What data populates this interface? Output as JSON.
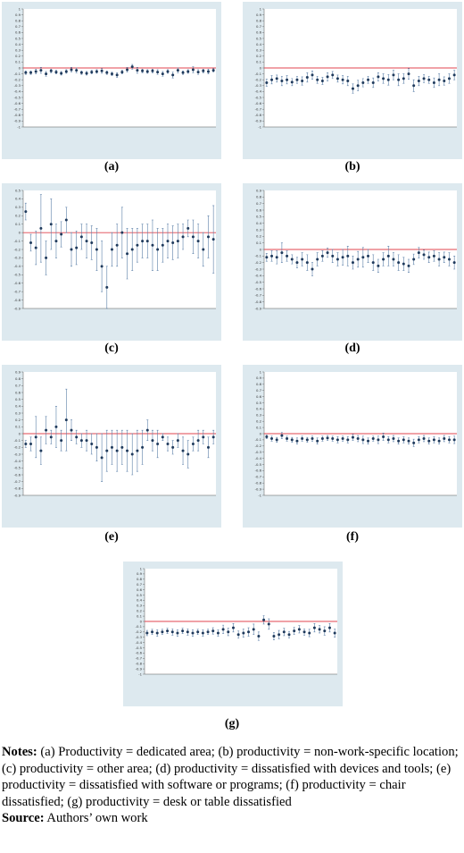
{
  "chart_data": [
    {
      "type": "errorbar",
      "label": "(a)",
      "point_color": "#1f3a5c",
      "error_color": "#5b7fa8",
      "reference_line": 0,
      "reference_color": "#e0454f",
      "ylim": [
        -1,
        1
      ],
      "yticks": [
        -1,
        -0.9,
        -0.8,
        -0.7,
        -0.6,
        -0.5,
        -0.4,
        -0.3,
        -0.2,
        -0.1,
        0,
        0.1,
        0.2,
        0.3,
        0.4,
        0.5,
        0.6,
        0.7,
        0.8,
        0.9,
        1
      ],
      "categories": [
        null,
        null,
        null,
        null,
        null,
        null,
        null,
        null,
        null,
        null,
        null,
        null,
        null,
        null,
        null,
        null,
        null,
        null,
        null,
        null,
        null,
        null,
        null,
        null,
        null,
        null,
        null,
        null,
        null,
        null,
        null,
        null,
        null,
        null,
        null,
        null,
        null,
        null
      ],
      "values": [
        -0.08,
        -0.08,
        -0.06,
        -0.04,
        -0.1,
        -0.05,
        -0.07,
        -0.09,
        -0.06,
        -0.03,
        -0.04,
        -0.08,
        -0.09,
        -0.07,
        -0.06,
        -0.05,
        -0.08,
        -0.1,
        -0.12,
        -0.07,
        -0.03,
        0.02,
        -0.04,
        -0.05,
        -0.06,
        -0.05,
        -0.07,
        -0.1,
        -0.06,
        -0.12,
        -0.04,
        -0.08,
        -0.06,
        -0.03,
        -0.07,
        -0.05,
        -0.06,
        -0.04
      ],
      "errors": [
        0.03,
        0.03,
        0.04,
        0.05,
        0.04,
        0.03,
        0.03,
        0.03,
        0.03,
        0.04,
        0.04,
        0.03,
        0.03,
        0.03,
        0.03,
        0.04,
        0.03,
        0.03,
        0.04,
        0.03,
        0.04,
        0.04,
        0.05,
        0.03,
        0.03,
        0.03,
        0.04,
        0.04,
        0.03,
        0.05,
        0.04,
        0.03,
        0.03,
        0.05,
        0.04,
        0.03,
        0.04,
        0.03
      ]
    },
    {
      "type": "errorbar",
      "label": "(b)",
      "point_color": "#1f3a5c",
      "error_color": "#5b7fa8",
      "reference_line": 0,
      "reference_color": "#e0454f",
      "ylim": [
        -1,
        1
      ],
      "yticks": [
        -1,
        -0.9,
        -0.8,
        -0.7,
        -0.6,
        -0.5,
        -0.4,
        -0.3,
        -0.2,
        -0.1,
        0,
        0.1,
        0.2,
        0.3,
        0.4,
        0.5,
        0.6,
        0.7,
        0.8,
        0.9,
        1
      ],
      "categories": [
        null,
        null,
        null,
        null,
        null,
        null,
        null,
        null,
        null,
        null,
        null,
        null,
        null,
        null,
        null,
        null,
        null,
        null,
        null,
        null,
        null,
        null,
        null,
        null,
        null,
        null,
        null,
        null,
        null,
        null,
        null,
        null,
        null,
        null,
        null,
        null,
        null,
        null
      ],
      "values": [
        -0.25,
        -0.2,
        -0.18,
        -0.22,
        -0.2,
        -0.24,
        -0.2,
        -0.22,
        -0.16,
        -0.12,
        -0.2,
        -0.22,
        -0.15,
        -0.12,
        -0.18,
        -0.2,
        -0.22,
        -0.35,
        -0.3,
        -0.25,
        -0.2,
        -0.25,
        -0.15,
        -0.18,
        -0.2,
        -0.12,
        -0.2,
        -0.18,
        -0.1,
        -0.3,
        -0.22,
        -0.18,
        -0.2,
        -0.25,
        -0.2,
        -0.22,
        -0.18,
        -0.12
      ],
      "errors": [
        0.06,
        0.07,
        0.06,
        0.08,
        0.07,
        0.06,
        0.06,
        0.07,
        0.08,
        0.07,
        0.06,
        0.06,
        0.07,
        0.06,
        0.06,
        0.07,
        0.08,
        0.08,
        0.09,
        0.07,
        0.06,
        0.08,
        0.07,
        0.08,
        0.09,
        0.08,
        0.1,
        0.08,
        0.09,
        0.1,
        0.08,
        0.07,
        0.06,
        0.08,
        0.1,
        0.07,
        0.08,
        0.08
      ]
    },
    {
      "type": "errorbar",
      "label": "(c)",
      "point_color": "#1f3a5c",
      "error_color": "#5b7fa8",
      "reference_line": 0,
      "reference_color": "#e0454f",
      "ylim": [
        -0.9,
        0.5
      ],
      "yticks": [
        -0.9,
        -0.8,
        -0.7,
        -0.6,
        -0.5,
        -0.4,
        -0.3,
        -0.2,
        -0.1,
        0,
        0.1,
        0.2,
        0.3,
        0.4,
        0.5
      ],
      "categories": [
        null,
        null,
        null,
        null,
        null,
        null,
        null,
        null,
        null,
        null,
        null,
        null,
        null,
        null,
        null,
        null,
        null,
        null,
        null,
        null,
        null,
        null,
        null,
        null,
        null,
        null,
        null,
        null,
        null,
        null,
        null,
        null,
        null,
        null,
        null,
        null,
        null,
        null
      ],
      "values": [
        0.25,
        -0.12,
        -0.18,
        0.05,
        -0.3,
        0.1,
        -0.1,
        -0.02,
        0.15,
        -0.2,
        -0.18,
        -0.05,
        -0.1,
        -0.12,
        -0.2,
        -0.4,
        -0.65,
        -0.2,
        -0.15,
        0,
        -0.25,
        -0.2,
        -0.15,
        -0.1,
        -0.1,
        -0.15,
        -0.2,
        -0.15,
        -0.1,
        -0.12,
        -0.1,
        -0.05,
        0.05,
        -0.05,
        -0.1,
        -0.2,
        -0.05,
        -0.08
      ],
      "errors": [
        0.1,
        0.1,
        0.2,
        0.4,
        0.2,
        0.3,
        0.2,
        0.15,
        0.15,
        0.2,
        0.2,
        0.15,
        0.2,
        0.2,
        0.25,
        0.3,
        0.25,
        0.2,
        0.25,
        0.3,
        0.3,
        0.25,
        0.2,
        0.2,
        0.2,
        0.3,
        0.25,
        0.2,
        0.2,
        0.2,
        0.2,
        0.15,
        0.1,
        0.2,
        0.2,
        0.2,
        0.25,
        0.4
      ]
    },
    {
      "type": "errorbar",
      "label": "(d)",
      "point_color": "#1f3a5c",
      "error_color": "#5b7fa8",
      "reference_line": 0,
      "reference_color": "#e0454f",
      "ylim": [
        -0.9,
        0.9
      ],
      "yticks": [
        -0.9,
        -0.8,
        -0.7,
        -0.6,
        -0.5,
        -0.4,
        -0.3,
        -0.2,
        -0.1,
        0,
        0.1,
        0.2,
        0.3,
        0.4,
        0.5,
        0.6,
        0.7,
        0.8,
        0.9
      ],
      "categories": [
        null,
        null,
        null,
        null,
        null,
        null,
        null,
        null,
        null,
        null,
        null,
        null,
        null,
        null,
        null,
        null,
        null,
        null,
        null,
        null,
        null,
        null,
        null,
        null,
        null,
        null,
        null,
        null,
        null,
        null,
        null,
        null,
        null,
        null,
        null,
        null,
        null,
        null
      ],
      "values": [
        -0.12,
        -0.1,
        -0.12,
        -0.05,
        -0.1,
        -0.15,
        -0.2,
        -0.15,
        -0.2,
        -0.3,
        -0.15,
        -0.1,
        -0.05,
        -0.1,
        -0.15,
        -0.12,
        -0.1,
        -0.2,
        -0.15,
        -0.12,
        -0.1,
        -0.2,
        -0.25,
        -0.15,
        -0.1,
        -0.15,
        -0.2,
        -0.22,
        -0.25,
        -0.15,
        -0.05,
        -0.08,
        -0.12,
        -0.1,
        -0.15,
        -0.12,
        -0.15,
        -0.2
      ],
      "errors": [
        0.06,
        0.08,
        0.1,
        0.15,
        0.08,
        0.07,
        0.08,
        0.1,
        0.12,
        0.1,
        0.1,
        0.08,
        0.07,
        0.1,
        0.1,
        0.12,
        0.15,
        0.1,
        0.12,
        0.15,
        0.1,
        0.12,
        0.1,
        0.1,
        0.15,
        0.1,
        0.12,
        0.1,
        0.1,
        0.08,
        0.08,
        0.07,
        0.08,
        0.08,
        0.1,
        0.08,
        0.1,
        0.1
      ]
    },
    {
      "type": "errorbar",
      "label": "(e)",
      "point_color": "#1f3a5c",
      "error_color": "#5b7fa8",
      "reference_line": 0,
      "reference_color": "#e0454f",
      "ylim": [
        -0.9,
        0.9
      ],
      "yticks": [
        -0.9,
        -0.8,
        -0.7,
        -0.6,
        -0.5,
        -0.4,
        -0.3,
        -0.2,
        -0.1,
        0,
        0.1,
        0.2,
        0.3,
        0.4,
        0.5,
        0.6,
        0.7,
        0.8,
        0.9
      ],
      "categories": [
        null,
        null,
        null,
        null,
        null,
        null,
        null,
        null,
        null,
        null,
        null,
        null,
        null,
        null,
        null,
        null,
        null,
        null,
        null,
        null,
        null,
        null,
        null,
        null,
        null,
        null,
        null,
        null,
        null,
        null,
        null,
        null,
        null,
        null,
        null,
        null,
        null,
        null
      ],
      "values": [
        -0.15,
        -0.15,
        -0.05,
        -0.25,
        0.05,
        -0.05,
        0.1,
        -0.1,
        0.2,
        0.05,
        -0.05,
        -0.1,
        -0.1,
        -0.15,
        -0.2,
        -0.35,
        -0.25,
        -0.2,
        -0.25,
        -0.2,
        -0.25,
        -0.3,
        -0.25,
        -0.2,
        0.05,
        -0.1,
        -0.15,
        -0.05,
        -0.15,
        -0.2,
        -0.1,
        -0.25,
        -0.3,
        -0.15,
        -0.1,
        -0.05,
        -0.2,
        -0.05
      ],
      "errors": [
        0.05,
        0.1,
        0.3,
        0.2,
        0.2,
        0.1,
        0.3,
        0.15,
        0.45,
        0.15,
        0.1,
        0.1,
        0.15,
        0.15,
        0.2,
        0.35,
        0.3,
        0.25,
        0.3,
        0.25,
        0.3,
        0.3,
        0.3,
        0.25,
        0.15,
        0.15,
        0.2,
        0.05,
        0.1,
        0.1,
        0.1,
        0.2,
        0.2,
        0.1,
        0.15,
        0.1,
        0.15,
        0.1
      ]
    },
    {
      "type": "errorbar",
      "label": "(f)",
      "point_color": "#1f3a5c",
      "error_color": "#5b7fa8",
      "reference_line": 0,
      "reference_color": "#e0454f",
      "ylim": [
        -1,
        1
      ],
      "yticks": [
        -1,
        -0.9,
        -0.8,
        -0.7,
        -0.6,
        -0.5,
        -0.4,
        -0.3,
        -0.2,
        -0.1,
        0,
        0.1,
        0.2,
        0.3,
        0.4,
        0.5,
        0.6,
        0.7,
        0.8,
        0.9,
        1
      ],
      "categories": [
        null,
        null,
        null,
        null,
        null,
        null,
        null,
        null,
        null,
        null,
        null,
        null,
        null,
        null,
        null,
        null,
        null,
        null,
        null,
        null,
        null,
        null,
        null,
        null,
        null,
        null,
        null,
        null,
        null,
        null,
        null,
        null,
        null,
        null,
        null,
        null,
        null,
        null
      ],
      "values": [
        -0.05,
        -0.08,
        -0.1,
        -0.03,
        -0.08,
        -0.1,
        -0.12,
        -0.08,
        -0.1,
        -0.08,
        -0.12,
        -0.08,
        -0.07,
        -0.08,
        -0.1,
        -0.08,
        -0.1,
        -0.06,
        -0.08,
        -0.1,
        -0.12,
        -0.08,
        -0.1,
        -0.05,
        -0.1,
        -0.08,
        -0.12,
        -0.1,
        -0.12,
        -0.15,
        -0.1,
        -0.08,
        -0.12,
        -0.1,
        -0.12,
        -0.08,
        -0.1,
        -0.1
      ],
      "errors": [
        0.03,
        0.04,
        0.04,
        0.05,
        0.04,
        0.04,
        0.05,
        0.04,
        0.04,
        0.04,
        0.05,
        0.04,
        0.04,
        0.04,
        0.05,
        0.04,
        0.05,
        0.05,
        0.05,
        0.06,
        0.05,
        0.04,
        0.06,
        0.06,
        0.05,
        0.05,
        0.05,
        0.05,
        0.05,
        0.06,
        0.05,
        0.05,
        0.05,
        0.05,
        0.05,
        0.05,
        0.05,
        0.06
      ]
    },
    {
      "type": "errorbar",
      "label": "(g)",
      "point_color": "#1f3a5c",
      "error_color": "#5b7fa8",
      "reference_line": 0,
      "reference_color": "#e0454f",
      "ylim": [
        -1,
        1
      ],
      "yticks": [
        -1,
        -0.9,
        -0.8,
        -0.7,
        -0.6,
        -0.5,
        -0.4,
        -0.3,
        -0.2,
        -0.1,
        0,
        0.1,
        0.2,
        0.3,
        0.4,
        0.5,
        0.6,
        0.7,
        0.8,
        0.9,
        1
      ],
      "categories": [
        null,
        null,
        null,
        null,
        null,
        null,
        null,
        null,
        null,
        null,
        null,
        null,
        null,
        null,
        null,
        null,
        null,
        null,
        null,
        null,
        null,
        null,
        null,
        null,
        null,
        null,
        null,
        null,
        null,
        null,
        null,
        null,
        null,
        null,
        null,
        null,
        null,
        null
      ],
      "values": [
        -0.22,
        -0.2,
        -0.22,
        -0.2,
        -0.18,
        -0.2,
        -0.22,
        -0.18,
        -0.2,
        -0.22,
        -0.2,
        -0.22,
        -0.2,
        -0.18,
        -0.22,
        -0.15,
        -0.2,
        -0.12,
        -0.25,
        -0.22,
        -0.2,
        -0.15,
        -0.28,
        0.03,
        -0.05,
        -0.28,
        -0.25,
        -0.2,
        -0.25,
        -0.18,
        -0.15,
        -0.2,
        -0.22,
        -0.12,
        -0.15,
        -0.18,
        -0.12,
        -0.22
      ],
      "errors": [
        0.05,
        0.05,
        0.06,
        0.05,
        0.05,
        0.06,
        0.06,
        0.05,
        0.06,
        0.06,
        0.05,
        0.06,
        0.05,
        0.06,
        0.06,
        0.08,
        0.07,
        0.08,
        0.07,
        0.08,
        0.08,
        0.1,
        0.08,
        0.08,
        0.1,
        0.07,
        0.08,
        0.07,
        0.06,
        0.07,
        0.07,
        0.06,
        0.07,
        0.08,
        0.07,
        0.08,
        0.08,
        0.08
      ]
    }
  ],
  "notes": {
    "notes_label": "Notes:",
    "notes_text": "(a) Productivity = dedicated area; (b) productivity = non-work-specific location; (c) productivity = other area; (d) productivity = dissatisfied with devices and tools; (e) productivity = dissatisfied with software or programs; (f) productivity = chair dissatisfied; (g) productivity = desk or table dissatisfied",
    "source_label": "Source:",
    "source_text": "Authors’ own work"
  }
}
